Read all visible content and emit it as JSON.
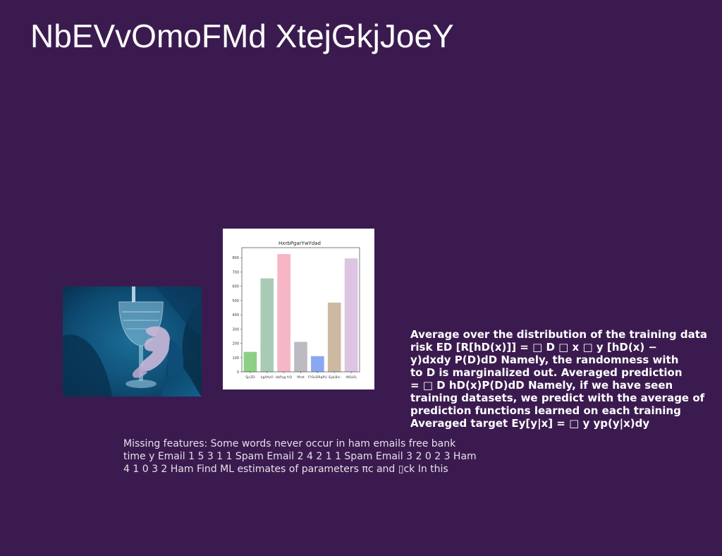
{
  "slide": {
    "title": "NbEVvOmoFMd XtejGkjJoeY",
    "background_color": "#3b1b4f",
    "photo": {
      "icon": "glass-pour-photo"
    },
    "bold_text_lines": [
      "Average over the distribution of the training data",
      "risk ED [R[hD(x)]] = □ D □ x □ y [hD(x) −",
      "y)dxdy P(D)dD Namely, the randomness with",
      "to D is marginalized out. Averaged prediction",
      "= □ D hD(x)P(D)dD Namely, if we have seen",
      "training datasets, we predict with the average of",
      "prediction functions learned on each training",
      "Averaged target Ey[y|x] = □ y yp(y|x)dy"
    ],
    "light_text_lines": [
      "Missing features: Some words never occur in ham emails free bank",
      "time y Email 1 5 3 1 1 Spam Email 2 4 2 1 1 Spam Email 3 2 0 2 3 Ham",
      "4 1 0 3 2 Ham Find ML estimates of parameters πc and ▯ck In this"
    ]
  },
  "chart_data": {
    "type": "bar",
    "title": "HxrbPgarYwYdad",
    "categories": [
      "SjcZD",
      "kgXAvO",
      "bbPyg frQ",
      "lfhet",
      "FYScDRqPU",
      "SjaLBni",
      "WQLRj"
    ],
    "values": [
      140,
      655,
      825,
      210,
      110,
      485,
      795
    ],
    "colors": [
      "#8ecf86",
      "#a9cbb6",
      "#f6b6c6",
      "#bdbac2",
      "#8aa8f3",
      "#cdb9a1",
      "#dcc4e2"
    ],
    "ylim": [
      0,
      870
    ],
    "yticks": [
      0,
      100,
      200,
      300,
      400,
      500,
      600,
      700,
      800
    ],
    "xlabel": "",
    "ylabel": "",
    "grid": false
  }
}
